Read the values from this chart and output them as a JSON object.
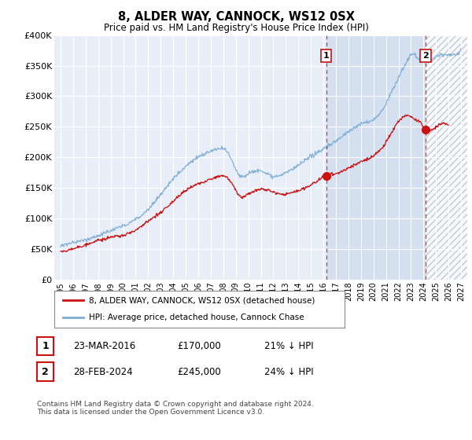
{
  "title": "8, ALDER WAY, CANNOCK, WS12 0SX",
  "subtitle": "Price paid vs. HM Land Registry's House Price Index (HPI)",
  "ylim": [
    0,
    400000
  ],
  "yticks": [
    0,
    50000,
    100000,
    150000,
    200000,
    250000,
    300000,
    350000,
    400000
  ],
  "ytick_labels": [
    "£0",
    "£50K",
    "£100K",
    "£150K",
    "£200K",
    "£250K",
    "£300K",
    "£350K",
    "£400K"
  ],
  "background_color": "#ffffff",
  "plot_bg_color": "#e8eef8",
  "grid_color": "#ffffff",
  "hpi_color": "#7dadd4",
  "price_color": "#cc1111",
  "dashed_line_color": "#dd3333",
  "marker1_date": 2016.22,
  "marker1_value": 170000,
  "marker2_date": 2024.16,
  "marker2_value": 245000,
  "legend_label1": "8, ALDER WAY, CANNOCK, WS12 0SX (detached house)",
  "legend_label2": "HPI: Average price, detached house, Cannock Chase",
  "ann1_x": 2016.22,
  "ann2_x": 2024.16,
  "table_row1": [
    "1",
    "23-MAR-2016",
    "£170,000",
    "21% ↓ HPI"
  ],
  "table_row2": [
    "2",
    "28-FEB-2024",
    "£245,000",
    "24% ↓ HPI"
  ],
  "footer": "Contains HM Land Registry data © Crown copyright and database right 2024.\nThis data is licensed under the Open Government Licence v3.0.",
  "xlim_start": 1994.5,
  "xlim_end": 2027.5,
  "xticks": [
    1995,
    1996,
    1997,
    1998,
    1999,
    2000,
    2001,
    2002,
    2003,
    2004,
    2005,
    2006,
    2007,
    2008,
    2009,
    2010,
    2011,
    2012,
    2013,
    2014,
    2015,
    2016,
    2017,
    2018,
    2019,
    2020,
    2021,
    2022,
    2023,
    2024,
    2025,
    2026,
    2027
  ],
  "shade_start": 2016.22,
  "hatch_start": 2024.16,
  "hatch_end": 2027.5
}
